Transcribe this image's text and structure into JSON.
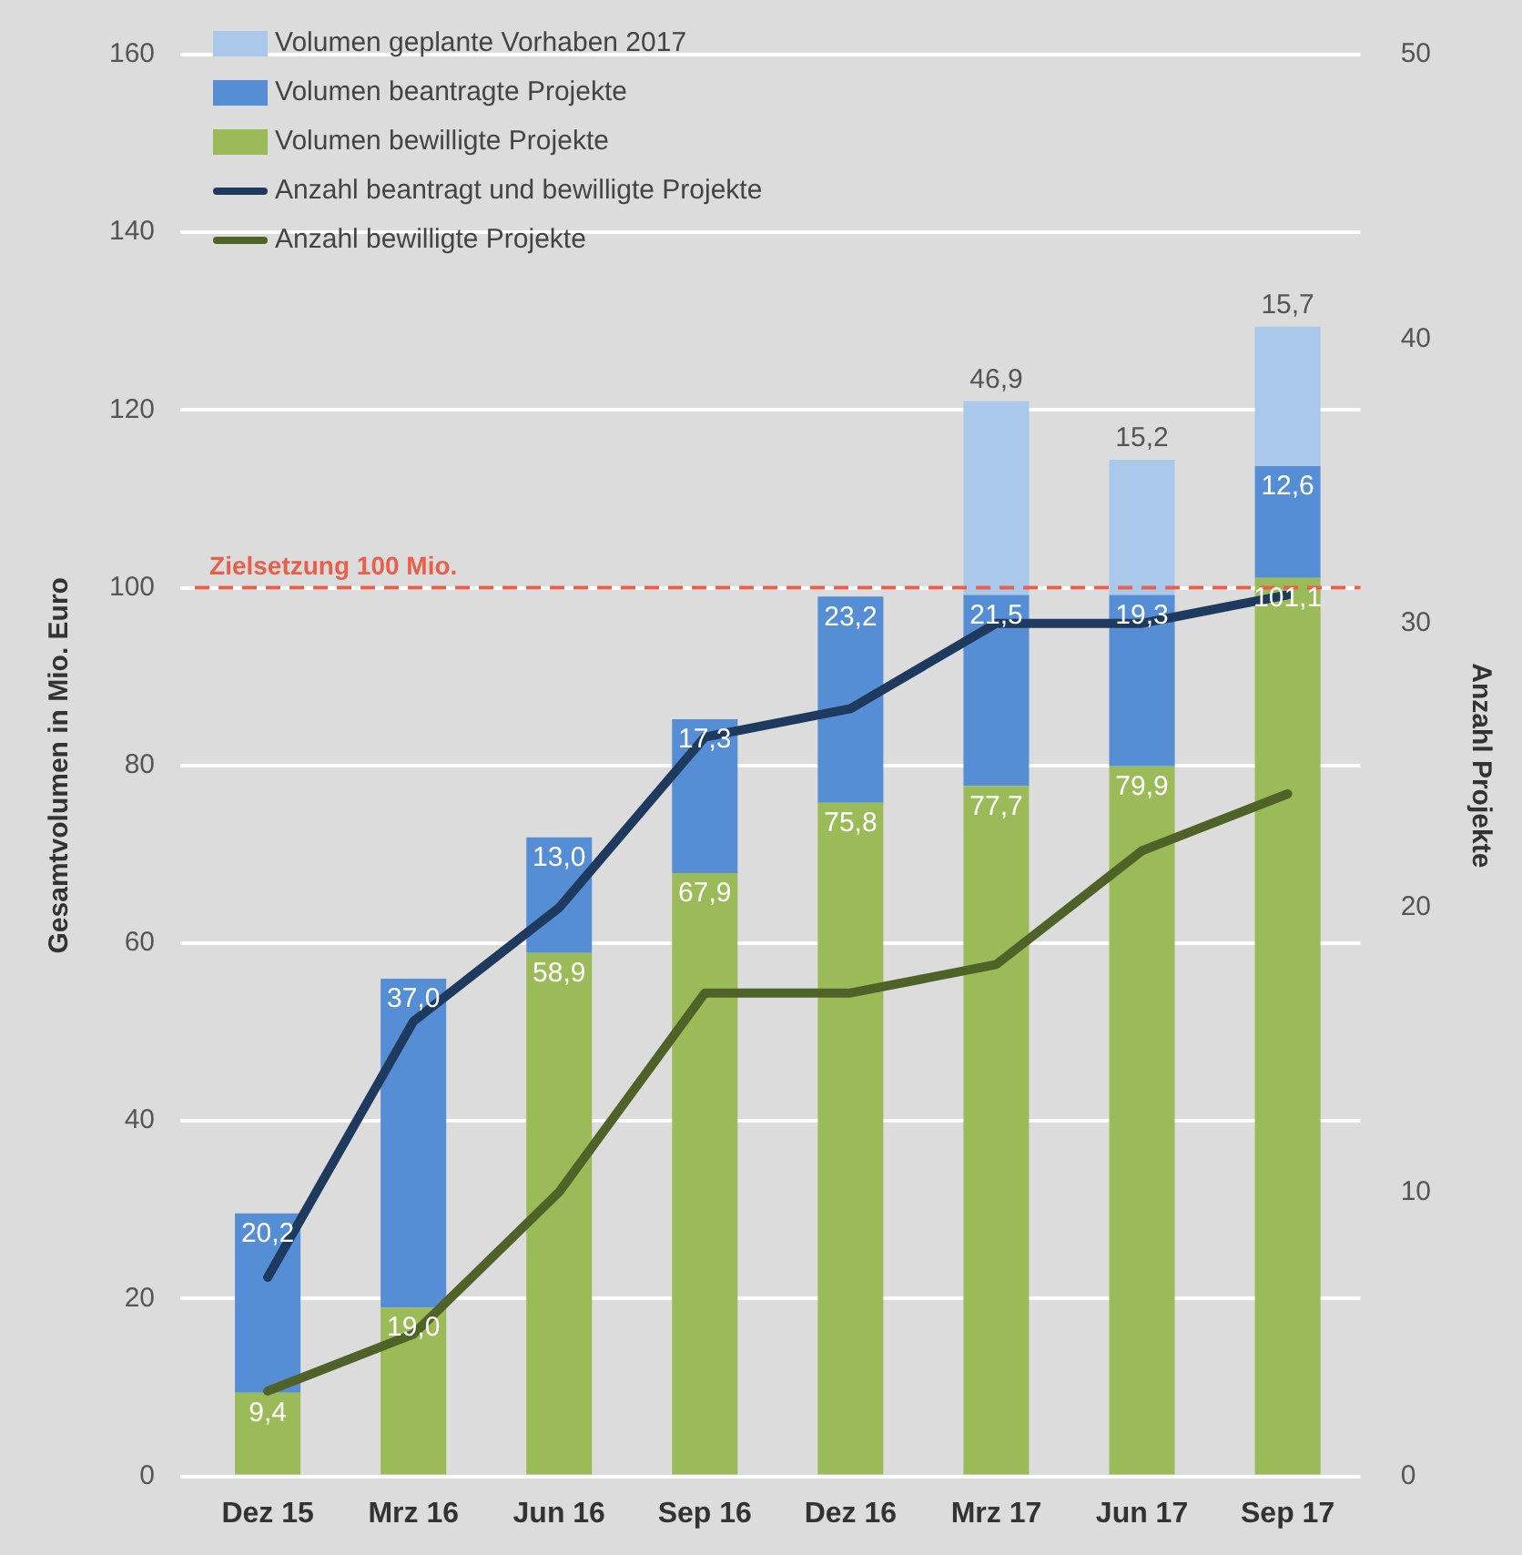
{
  "chart_data": {
    "type": "bar",
    "stacked": true,
    "xlabel": null,
    "ylabel": "Gesamtvolumen in Mio. Euro",
    "y2label": "Anzahl Projekte",
    "categories": [
      "Dez 15",
      "Mrz 16",
      "Jun 16",
      "Sep 16",
      "Dez 16",
      "Mrz 17",
      "Jun 17",
      "Sep 17"
    ],
    "ylim": [
      0,
      160
    ],
    "yticks": [
      0,
      20,
      40,
      60,
      80,
      100,
      120,
      140,
      160
    ],
    "y2lim": [
      0,
      50
    ],
    "y2ticks": [
      0,
      10,
      20,
      30,
      40,
      50
    ],
    "grid": "y",
    "annotations": [
      {
        "text": "46,9",
        "x": "Mrz 17",
        "y": 121
      }
    ],
    "legend": "top left",
    "marker": "none",
    "line_style": "solid",
    "ref_lines": [
      {
        "axis": "y",
        "value": 100,
        "label": "Zielsetzung 100 Mio.",
        "color": "#e8604c",
        "line_style": "dashed"
      }
    ],
    "series": [
      {
        "name": "Volumen bewilligte Projekte",
        "color": "#9bbb59",
        "values": [
          9.4,
          19.0,
          58.9,
          67.9,
          75.8,
          77.7,
          79.9,
          101.1
        ],
        "value_labels": [
          "9,4",
          "19,0",
          "58,9",
          "67,9",
          "75,8",
          "77,7",
          "79,9",
          "101,1"
        ]
      },
      {
        "name": "Volumen beantragte Projekte",
        "color": "#558ed5",
        "values": [
          20.2,
          37.0,
          13.0,
          17.3,
          23.2,
          21.5,
          19.3,
          12.6
        ],
        "value_labels": [
          "20,2",
          "37,0",
          "13,0",
          "17,3",
          "23,2",
          "21,5",
          "19,3",
          "12,6"
        ]
      },
      {
        "name": "Volumen geplante Vorhaben 2017",
        "color": "#a9c8ea",
        "values": [
          null,
          null,
          null,
          null,
          null,
          21.8,
          15.2,
          15.7
        ],
        "value_labels": [
          null,
          null,
          null,
          null,
          null,
          null,
          "15,2",
          "15,7"
        ]
      },
      {
        "name": "Anzahl beantragt und bewilligte Projekte",
        "type": "line",
        "axis": "y2",
        "color": "#1f3a5f",
        "values": [
          7,
          16,
          20,
          26,
          27,
          30,
          30,
          31
        ]
      },
      {
        "name": "Anzahl bewilligte Projekte",
        "type": "line",
        "axis": "y2",
        "color": "#4f6228",
        "values": [
          3,
          5,
          10,
          17,
          17,
          18,
          22,
          24
        ]
      }
    ]
  }
}
